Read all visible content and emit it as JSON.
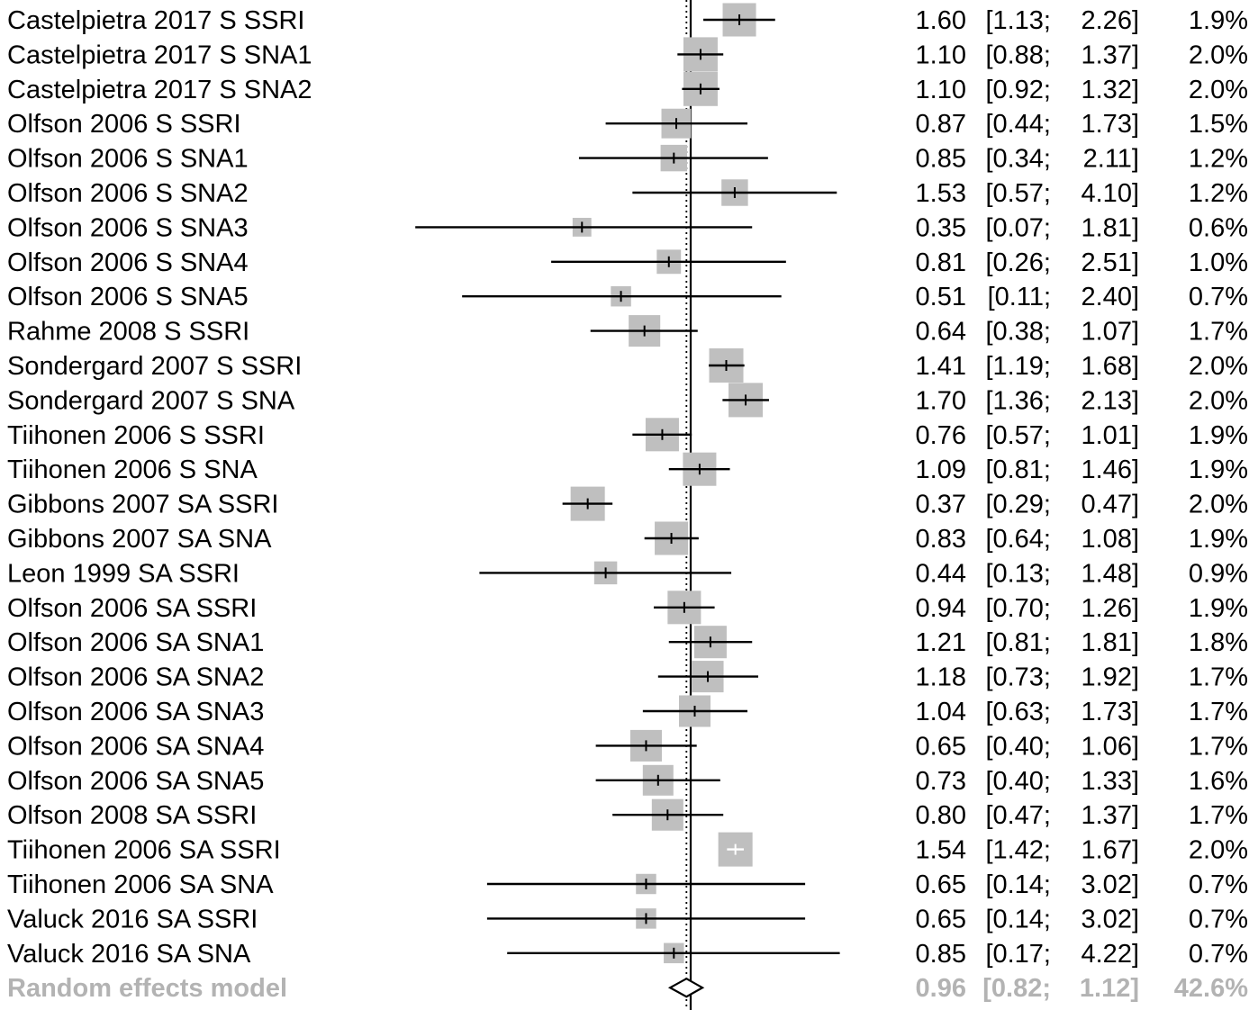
{
  "chart_data": {
    "type": "forest",
    "colors": {
      "box": "#bfbfbf",
      "line": "#000000",
      "summary_text": "#b3b3b3"
    },
    "studies": [
      {
        "label": "Castelpietra 2017 S SSRI",
        "est": 1.6,
        "lo": 1.13,
        "hi": 2.26,
        "est_text": "1.60",
        "ci_lo_text": "[1.13;",
        "ci_hi_text": "2.26]",
        "weight": 1.9,
        "weight_text": "1.9%"
      },
      {
        "label": "Castelpietra 2017 S SNA1",
        "est": 1.1,
        "lo": 0.88,
        "hi": 1.37,
        "est_text": "1.10",
        "ci_lo_text": "[0.88;",
        "ci_hi_text": "1.37]",
        "weight": 2.0,
        "weight_text": "2.0%"
      },
      {
        "label": "Castelpietra 2017 S SNA2",
        "est": 1.1,
        "lo": 0.92,
        "hi": 1.32,
        "est_text": "1.10",
        "ci_lo_text": "[0.92;",
        "ci_hi_text": "1.32]",
        "weight": 2.0,
        "weight_text": "2.0%"
      },
      {
        "label": "Olfson 2006 S SSRI",
        "est": 0.87,
        "lo": 0.44,
        "hi": 1.73,
        "est_text": "0.87",
        "ci_lo_text": "[0.44;",
        "ci_hi_text": "1.73]",
        "weight": 1.5,
        "weight_text": "1.5%"
      },
      {
        "label": "Olfson 2006 S SNA1",
        "est": 0.85,
        "lo": 0.34,
        "hi": 2.11,
        "est_text": "0.85",
        "ci_lo_text": "[0.34;",
        "ci_hi_text": "2.11]",
        "weight": 1.2,
        "weight_text": "1.2%"
      },
      {
        "label": "Olfson 2006 S SNA2",
        "est": 1.53,
        "lo": 0.57,
        "hi": 4.1,
        "est_text": "1.53",
        "ci_lo_text": "[0.57;",
        "ci_hi_text": "4.10]",
        "weight": 1.2,
        "weight_text": "1.2%"
      },
      {
        "label": "Olfson 2006 S SNA3",
        "est": 0.35,
        "lo": 0.07,
        "hi": 1.81,
        "est_text": "0.35",
        "ci_lo_text": "[0.07;",
        "ci_hi_text": "1.81]",
        "weight": 0.6,
        "weight_text": "0.6%"
      },
      {
        "label": "Olfson 2006 S SNA4",
        "est": 0.81,
        "lo": 0.26,
        "hi": 2.51,
        "est_text": "0.81",
        "ci_lo_text": "[0.26;",
        "ci_hi_text": "2.51]",
        "weight": 1.0,
        "weight_text": "1.0%"
      },
      {
        "label": "Olfson 2006 S SNA5",
        "est": 0.51,
        "lo": 0.11,
        "hi": 2.4,
        "est_text": "0.51",
        "ci_lo_text": "[0.11;",
        "ci_hi_text": "2.40]",
        "weight": 0.7,
        "weight_text": "0.7%"
      },
      {
        "label": "Rahme 2008 S SSRI",
        "est": 0.64,
        "lo": 0.38,
        "hi": 1.07,
        "est_text": "0.64",
        "ci_lo_text": "[0.38;",
        "ci_hi_text": "1.07]",
        "weight": 1.7,
        "weight_text": "1.7%"
      },
      {
        "label": "Sondergard 2007 S SSRI",
        "est": 1.41,
        "lo": 1.19,
        "hi": 1.68,
        "est_text": "1.41",
        "ci_lo_text": "[1.19;",
        "ci_hi_text": "1.68]",
        "weight": 2.0,
        "weight_text": "2.0%"
      },
      {
        "label": "Sondergard 2007 S SNA",
        "est": 1.7,
        "lo": 1.36,
        "hi": 2.13,
        "est_text": "1.70",
        "ci_lo_text": "[1.36;",
        "ci_hi_text": "2.13]",
        "weight": 2.0,
        "weight_text": "2.0%"
      },
      {
        "label": "Tiihonen 2006 S SSRI",
        "est": 0.76,
        "lo": 0.57,
        "hi": 1.01,
        "est_text": "0.76",
        "ci_lo_text": "[0.57;",
        "ci_hi_text": "1.01]",
        "weight": 1.9,
        "weight_text": "1.9%"
      },
      {
        "label": "Tiihonen 2006 S SNA",
        "est": 1.09,
        "lo": 0.81,
        "hi": 1.46,
        "est_text": "1.09",
        "ci_lo_text": "[0.81;",
        "ci_hi_text": "1.46]",
        "weight": 1.9,
        "weight_text": "1.9%"
      },
      {
        "label": "Gibbons 2007  SA SSRI",
        "est": 0.37,
        "lo": 0.29,
        "hi": 0.47,
        "est_text": "0.37",
        "ci_lo_text": "[0.29;",
        "ci_hi_text": "0.47]",
        "weight": 2.0,
        "weight_text": "2.0%"
      },
      {
        "label": "Gibbons 2007  SA SNA",
        "est": 0.83,
        "lo": 0.64,
        "hi": 1.08,
        "est_text": "0.83",
        "ci_lo_text": "[0.64;",
        "ci_hi_text": "1.08]",
        "weight": 1.9,
        "weight_text": "1.9%"
      },
      {
        "label": "Leon 1999  SA SSRI",
        "est": 0.44,
        "lo": 0.13,
        "hi": 1.48,
        "est_text": "0.44",
        "ci_lo_text": "[0.13;",
        "ci_hi_text": "1.48]",
        "weight": 0.9,
        "weight_text": "0.9%"
      },
      {
        "label": "Olfson 2006  SA SSRI",
        "est": 0.94,
        "lo": 0.7,
        "hi": 1.26,
        "est_text": "0.94",
        "ci_lo_text": "[0.70;",
        "ci_hi_text": "1.26]",
        "weight": 1.9,
        "weight_text": "1.9%"
      },
      {
        "label": "Olfson 2006  SA SNA1",
        "est": 1.21,
        "lo": 0.81,
        "hi": 1.81,
        "est_text": "1.21",
        "ci_lo_text": "[0.81;",
        "ci_hi_text": "1.81]",
        "weight": 1.8,
        "weight_text": "1.8%"
      },
      {
        "label": "Olfson 2006  SA SNA2",
        "est": 1.18,
        "lo": 0.73,
        "hi": 1.92,
        "est_text": "1.18",
        "ci_lo_text": "[0.73;",
        "ci_hi_text": "1.92]",
        "weight": 1.7,
        "weight_text": "1.7%"
      },
      {
        "label": "Olfson 2006  SA SNA3",
        "est": 1.04,
        "lo": 0.63,
        "hi": 1.73,
        "est_text": "1.04",
        "ci_lo_text": "[0.63;",
        "ci_hi_text": "1.73]",
        "weight": 1.7,
        "weight_text": "1.7%"
      },
      {
        "label": "Olfson 2006  SA SNA4",
        "est": 0.65,
        "lo": 0.4,
        "hi": 1.06,
        "est_text": "0.65",
        "ci_lo_text": "[0.40;",
        "ci_hi_text": "1.06]",
        "weight": 1.7,
        "weight_text": "1.7%"
      },
      {
        "label": "Olfson 2006  SA SNA5",
        "est": 0.73,
        "lo": 0.4,
        "hi": 1.33,
        "est_text": "0.73",
        "ci_lo_text": "[0.40;",
        "ci_hi_text": "1.33]",
        "weight": 1.6,
        "weight_text": "1.6%"
      },
      {
        "label": "Olfson 2008  SA SSRI",
        "est": 0.8,
        "lo": 0.47,
        "hi": 1.37,
        "est_text": "0.80",
        "ci_lo_text": "[0.47;",
        "ci_hi_text": "1.37]",
        "weight": 1.7,
        "weight_text": "1.7%"
      },
      {
        "label": "Tiihonen 2006  SA SSRI",
        "est": 1.54,
        "lo": 1.42,
        "hi": 1.67,
        "est_text": "1.54",
        "ci_lo_text": "[1.42;",
        "ci_hi_text": "1.67]",
        "weight": 2.0,
        "weight_text": "2.0%"
      },
      {
        "label": "Tiihonen 2006  SA SNA",
        "est": 0.65,
        "lo": 0.14,
        "hi": 3.02,
        "est_text": "0.65",
        "ci_lo_text": "[0.14;",
        "ci_hi_text": "3.02]",
        "weight": 0.7,
        "weight_text": "0.7%"
      },
      {
        "label": "Valuck 2016  SA SSRI",
        "est": 0.65,
        "lo": 0.14,
        "hi": 3.02,
        "est_text": "0.65",
        "ci_lo_text": "[0.14;",
        "ci_hi_text": "3.02]",
        "weight": 0.7,
        "weight_text": "0.7%"
      },
      {
        "label": "Valuck 2016  SA SNA",
        "est": 0.85,
        "lo": 0.17,
        "hi": 4.22,
        "est_text": "0.85",
        "ci_lo_text": "[0.17;",
        "ci_hi_text": "4.22]",
        "weight": 0.7,
        "weight_text": "0.7%"
      }
    ],
    "summary": {
      "label": "Random effects model",
      "est": 0.96,
      "lo": 0.82,
      "hi": 1.12,
      "est_text": "0.96",
      "ci_lo_text": "[0.82;",
      "ci_hi_text": "1.12]",
      "weight_text": "42.6%"
    },
    "reference_line": 1,
    "xscale": "log",
    "xlim": [
      0.03,
      5.5
    ]
  }
}
